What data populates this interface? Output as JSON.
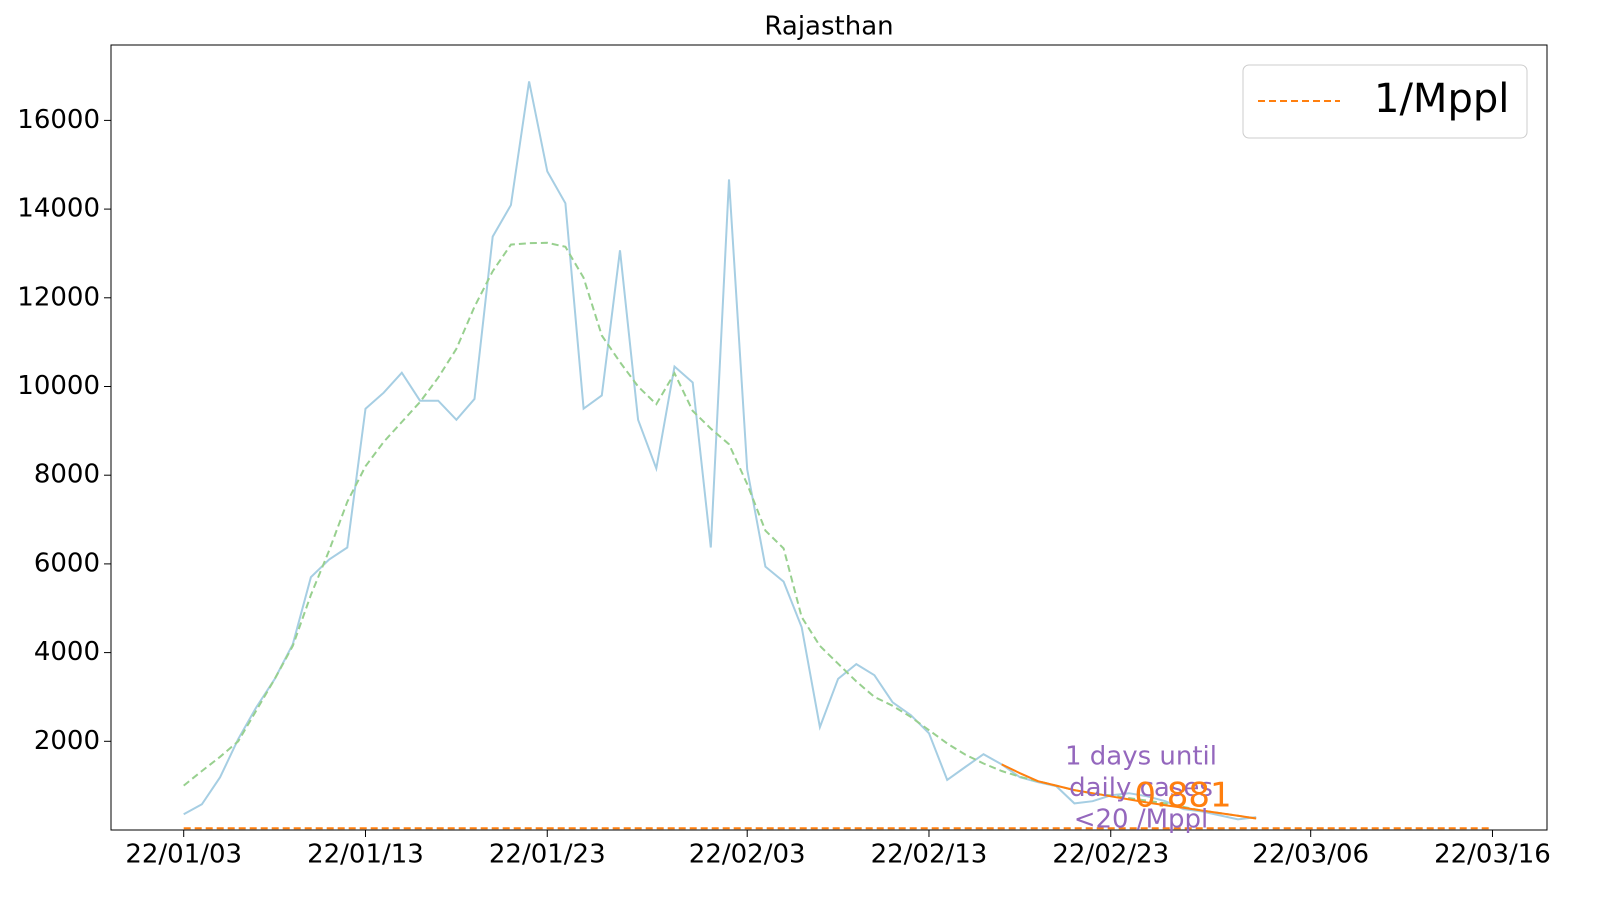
{
  "chart_data": {
    "type": "line",
    "title": "Rajasthan",
    "xlim": [
      "21/12/30",
      "22/03/19"
    ],
    "xticks": [
      "22/01/03",
      "22/01/13",
      "22/01/23",
      "22/02/03",
      "22/02/13",
      "22/02/23",
      "22/03/06",
      "22/03/16"
    ],
    "ylim": [
      0,
      17700
    ],
    "yticks": [
      2000,
      4000,
      6000,
      8000,
      10000,
      12000,
      14000,
      16000
    ],
    "legend": "upper right",
    "series": [
      {
        "color": "#a6cee3",
        "style": "solid",
        "x": [
          "22/01/03",
          "22/01/04",
          "22/01/05",
          "22/01/06",
          "22/01/07",
          "22/01/08",
          "22/01/09",
          "22/01/10",
          "22/01/11",
          "22/01/12",
          "22/01/13",
          "22/01/14",
          "22/01/15",
          "22/01/16",
          "22/01/17",
          "22/01/18",
          "22/01/19",
          "22/01/20",
          "22/01/21",
          "22/01/22",
          "22/01/23",
          "22/01/24",
          "22/01/25",
          "22/01/26",
          "22/01/27",
          "22/01/28",
          "22/01/29",
          "22/01/30",
          "22/01/31",
          "22/02/01",
          "22/02/02",
          "22/02/03",
          "22/02/04",
          "22/02/05",
          "22/02/06",
          "22/02/07",
          "22/02/08",
          "22/02/09",
          "22/02/10",
          "22/02/11",
          "22/02/12",
          "22/02/13",
          "22/02/14",
          "22/02/15",
          "22/02/16",
          "22/02/17",
          "22/02/18",
          "22/02/19",
          "22/02/20",
          "22/02/21",
          "22/02/22",
          "22/02/23",
          "22/02/24",
          "22/02/25",
          "22/02/26",
          "22/02/27",
          "22/02/28",
          "22/03/01",
          "22/03/02",
          "22/03/03"
        ],
        "values": [
          354,
          580,
          1190,
          2050,
          2770,
          3400,
          4190,
          5700,
          6100,
          6370,
          9500,
          9860,
          10310,
          9680,
          9680,
          9250,
          9720,
          13380,
          14090,
          16880,
          14850,
          14130,
          9500,
          9800,
          13070,
          9250,
          8150,
          10450,
          10090,
          6370,
          14670,
          8130,
          5940,
          5600,
          4570,
          2320,
          3410,
          3740,
          3490,
          2880,
          2590,
          2180,
          1130,
          1420,
          1710,
          1480,
          1190,
          1080,
          990,
          600,
          650,
          780,
          830,
          760,
          650,
          470,
          420,
          330,
          240,
          290
        ]
      },
      {
        "color": "#98d08f",
        "style": "dashed",
        "x": [
          "22/01/03",
          "22/01/04",
          "22/01/05",
          "22/01/06",
          "22/01/07",
          "22/01/08",
          "22/01/09",
          "22/01/10",
          "22/01/11",
          "22/01/12",
          "22/01/13",
          "22/01/14",
          "22/01/15",
          "22/01/16",
          "22/01/17",
          "22/01/18",
          "22/01/19",
          "22/01/20",
          "22/01/21",
          "22/01/22",
          "22/01/23",
          "22/01/24",
          "22/01/25",
          "22/01/26",
          "22/01/27",
          "22/01/28",
          "22/01/29",
          "22/01/30",
          "22/01/31",
          "22/02/01",
          "22/02/02",
          "22/02/03",
          "22/02/04",
          "22/02/05",
          "22/02/06",
          "22/02/07",
          "22/02/08",
          "22/02/09",
          "22/02/10",
          "22/02/11",
          "22/02/12",
          "22/02/13",
          "22/02/14",
          "22/02/15",
          "22/02/16",
          "22/02/17",
          "22/02/18",
          "22/02/19",
          "22/02/20",
          "22/02/21",
          "22/02/22",
          "22/02/23",
          "22/02/24",
          "22/02/25",
          "22/02/26",
          "22/02/27",
          "22/02/28",
          "22/03/01",
          "22/03/02",
          "22/03/03"
        ],
        "values": [
          1000,
          1330,
          1650,
          2000,
          2700,
          3400,
          4150,
          5300,
          6300,
          7400,
          8200,
          8750,
          9200,
          9650,
          10200,
          10850,
          11800,
          12600,
          13200,
          13230,
          13240,
          13150,
          12450,
          11150,
          10550,
          10000,
          9600,
          10300,
          9450,
          9050,
          8700,
          7800,
          6750,
          6350,
          4800,
          4150,
          3750,
          3350,
          3000,
          2800,
          2550,
          2250,
          1950,
          1700,
          1500,
          1330,
          1200,
          1100,
          1000,
          900,
          820,
          780,
          720,
          660,
          600,
          520,
          440,
          380,
          320,
          260
        ]
      },
      {
        "color": "#ff7f0e",
        "style": "solid",
        "x": [
          "22/02/17",
          "22/02/18",
          "22/02/19",
          "22/02/20",
          "22/02/21",
          "22/02/22",
          "22/02/23",
          "22/02/24",
          "22/02/25",
          "22/02/26",
          "22/02/27",
          "22/02/28",
          "22/03/01",
          "22/03/02",
          "22/03/03"
        ],
        "values": [
          1480,
          1280,
          1100,
          1000,
          900,
          830,
          760,
          690,
          620,
          560,
          500,
          440,
          380,
          320,
          260
        ]
      },
      {
        "name": "1/Mppl",
        "color": "#ff7f0e",
        "style": "dashed",
        "x": [
          "22/01/03",
          "22/03/16"
        ],
        "values": [
          40,
          40
        ]
      }
    ],
    "annotations": [
      {
        "lines": [
          "1 days until",
          "daily cases",
          "<20 /Mppl"
        ],
        "color": "#9467bd"
      },
      {
        "lines": [
          "0.881"
        ],
        "color": "#ff7f0e"
      }
    ]
  }
}
